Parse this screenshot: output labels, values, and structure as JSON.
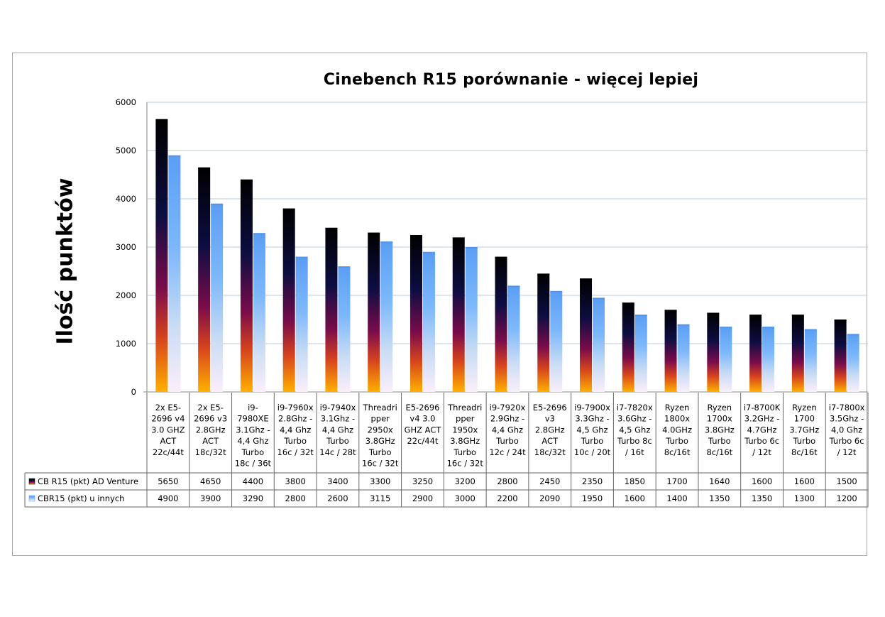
{
  "chart_data": {
    "type": "bar",
    "title": "Cinebench R15 porównanie - więcej lepiej",
    "ylabel": "Ilość punktów",
    "xlabel": "",
    "ylim": [
      0,
      6000
    ],
    "yticks": [
      "0",
      "1000",
      "2000",
      "3000",
      "4000",
      "5000",
      "6000"
    ],
    "grid": true,
    "legend": "data-table-left",
    "categories": [
      [
        "2x E5-",
        "2696 v4",
        "3.0 GHZ",
        "ACT",
        "22c/44t"
      ],
      [
        "2x E5-",
        "2696 v3",
        "2.8GHz",
        "ACT",
        "18c/32t"
      ],
      [
        "i9-",
        "7980XE",
        "3.1Ghz -",
        "4,4 Ghz",
        "Turbo",
        "18c / 36t"
      ],
      [
        "i9-7960x",
        "2.8Ghz -",
        "4,4 Ghz",
        "Turbo",
        "16c / 32t"
      ],
      [
        "i9-7940x",
        "3.1Ghz -",
        "4,4 Ghz",
        "Turbo",
        "14c / 28t"
      ],
      [
        "Threadri",
        "pper",
        "2950x",
        "3.8GHz",
        "Turbo",
        "16c / 32t"
      ],
      [
        "E5-2696",
        "v4 3.0",
        "GHZ ACT",
        "22c/44t"
      ],
      [
        "Threadri",
        "pper",
        "1950x",
        "3.8GHz",
        "Turbo",
        "16c / 32t"
      ],
      [
        "i9-7920x",
        "2.9Ghz -",
        "4,4 Ghz",
        "Turbo",
        "12c / 24t"
      ],
      [
        "E5-2696",
        "v3",
        "2.8GHz",
        "ACT",
        "18c/32t"
      ],
      [
        "i9-7900x",
        "3.3Ghz -",
        "4,5 Ghz",
        "Turbo",
        "10c / 20t"
      ],
      [
        "i7-7820x",
        "3.6Ghz -",
        "4,5 Ghz",
        "Turbo 8c",
        "/ 16t"
      ],
      [
        "Ryzen",
        "1800x",
        "4.0GHz",
        "Turbo",
        "8c/16t"
      ],
      [
        "Ryzen",
        "1700x",
        "3.8GHz",
        "Turbo",
        "8c/16t"
      ],
      [
        "i7-8700K",
        "3.2GHz -",
        "4.7GHz",
        "Turbo 6c",
        "/ 12t"
      ],
      [
        "Ryzen",
        "1700",
        "3.7GHz",
        "Turbo",
        "8c/16t"
      ],
      [
        "i7-7800x",
        "3.5Ghz -",
        "4,0 Ghz",
        "Turbo 6c",
        "/ 12t"
      ]
    ],
    "series": [
      {
        "name": "CB R15 (pkt) AD Venture",
        "color": "#0b0b2e",
        "values": [
          5650,
          4650,
          4400,
          3800,
          3400,
          3300,
          3250,
          3200,
          2800,
          2450,
          2350,
          1850,
          1700,
          1640,
          1600,
          1600,
          1500
        ]
      },
      {
        "name": "CBR15 (pkt) u innych",
        "color": "#6aaaf4",
        "values": [
          4900,
          3900,
          3290,
          2800,
          2600,
          3115,
          2900,
          3000,
          2200,
          2090,
          1950,
          1600,
          1400,
          1350,
          1350,
          1300,
          1200
        ]
      }
    ]
  }
}
